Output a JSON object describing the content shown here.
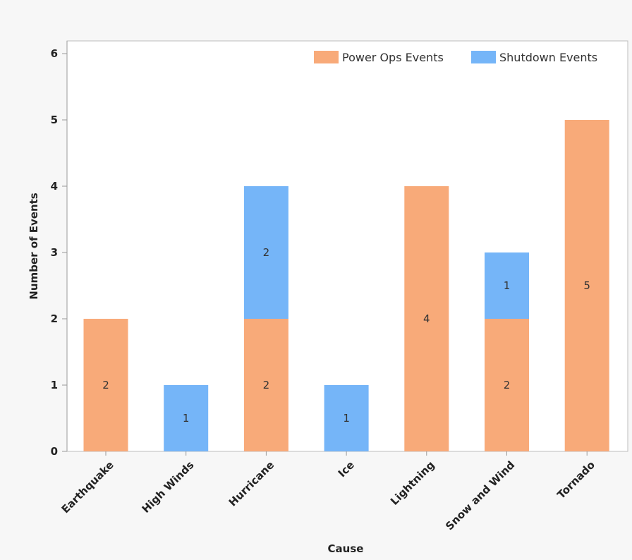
{
  "chart_data": {
    "type": "bar",
    "stacked": true,
    "title": "",
    "xlabel": "Cause",
    "ylabel": "Number of Events",
    "ylim": [
      0,
      6
    ],
    "yticks": [
      0,
      1,
      2,
      3,
      4,
      5,
      6
    ],
    "grid": false,
    "legend_position": "top-right",
    "categories": [
      "Earthquake",
      "High Winds",
      "Hurricane",
      "Ice",
      "Lightning",
      "Snow and Wind",
      "Tornado"
    ],
    "series": [
      {
        "name": "Power Ops Events",
        "color": "#F8AA79",
        "values": [
          2,
          0,
          2,
          0,
          4,
          2,
          5
        ]
      },
      {
        "name": "Shutdown Events",
        "color": "#75B5F8",
        "values": [
          0,
          1,
          2,
          1,
          0,
          1,
          0
        ]
      }
    ]
  }
}
